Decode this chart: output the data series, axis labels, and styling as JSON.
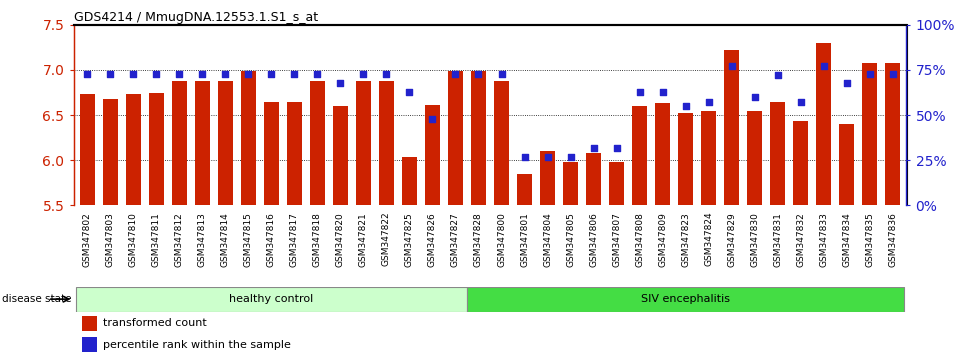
{
  "title": "GDS4214 / MmugDNA.12553.1.S1_s_at",
  "samples": [
    "GSM347802",
    "GSM347803",
    "GSM347810",
    "GSM347811",
    "GSM347812",
    "GSM347813",
    "GSM347814",
    "GSM347815",
    "GSM347816",
    "GSM347817",
    "GSM347818",
    "GSM347820",
    "GSM347821",
    "GSM347822",
    "GSM347825",
    "GSM347826",
    "GSM347827",
    "GSM347828",
    "GSM347800",
    "GSM347801",
    "GSM347804",
    "GSM347805",
    "GSM347806",
    "GSM347807",
    "GSM347808",
    "GSM347809",
    "GSM347823",
    "GSM347824",
    "GSM347829",
    "GSM347830",
    "GSM347831",
    "GSM347832",
    "GSM347833",
    "GSM347834",
    "GSM347835",
    "GSM347836"
  ],
  "bar_values": [
    6.73,
    6.68,
    6.73,
    6.74,
    6.88,
    6.88,
    6.88,
    6.99,
    6.65,
    6.64,
    6.88,
    6.6,
    6.88,
    6.88,
    6.03,
    6.61,
    6.99,
    6.99,
    6.88,
    5.85,
    6.1,
    5.98,
    6.08,
    5.98,
    6.6,
    6.63,
    6.52,
    6.55,
    7.22,
    6.55,
    6.65,
    6.43,
    7.3,
    6.4,
    7.08,
    7.08
  ],
  "percentile_values": [
    73,
    73,
    73,
    73,
    73,
    73,
    73,
    73,
    73,
    73,
    73,
    68,
    73,
    73,
    63,
    48,
    73,
    73,
    73,
    27,
    27,
    27,
    32,
    32,
    63,
    63,
    55,
    57,
    77,
    60,
    72,
    57,
    77,
    68,
    73,
    73
  ],
  "healthy_count": 17,
  "ylim_left": [
    5.5,
    7.5
  ],
  "ylim_right": [
    0,
    100
  ],
  "yticks_left": [
    5.5,
    6.0,
    6.5,
    7.0,
    7.5
  ],
  "yticks_right": [
    0,
    25,
    50,
    75,
    100
  ],
  "bar_color": "#cc2200",
  "dot_color": "#2222cc",
  "healthy_color": "#ccffcc",
  "siv_color": "#44dd44",
  "healthy_label": "healthy control",
  "siv_label": "SIV encephalitis",
  "disease_state_label": "disease state",
  "legend_bar_label": "transformed count",
  "legend_dot_label": "percentile rank within the sample",
  "tick_bg_color": "#d8d8d8"
}
